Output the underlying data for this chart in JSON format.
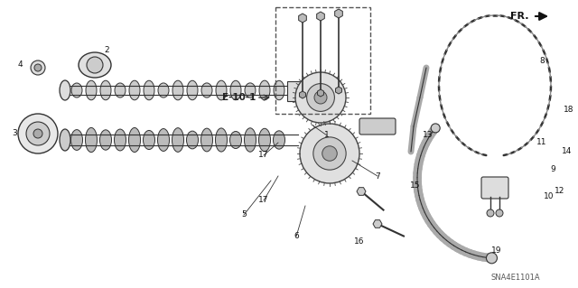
{
  "title": "",
  "background_color": "#ffffff",
  "diagram_label": "SNA4E1101A",
  "reference_label": "E-10-1",
  "fr_label": "FR.",
  "line_color": "#333333",
  "part_color": "#555555",
  "bg_color": "#ffffff"
}
